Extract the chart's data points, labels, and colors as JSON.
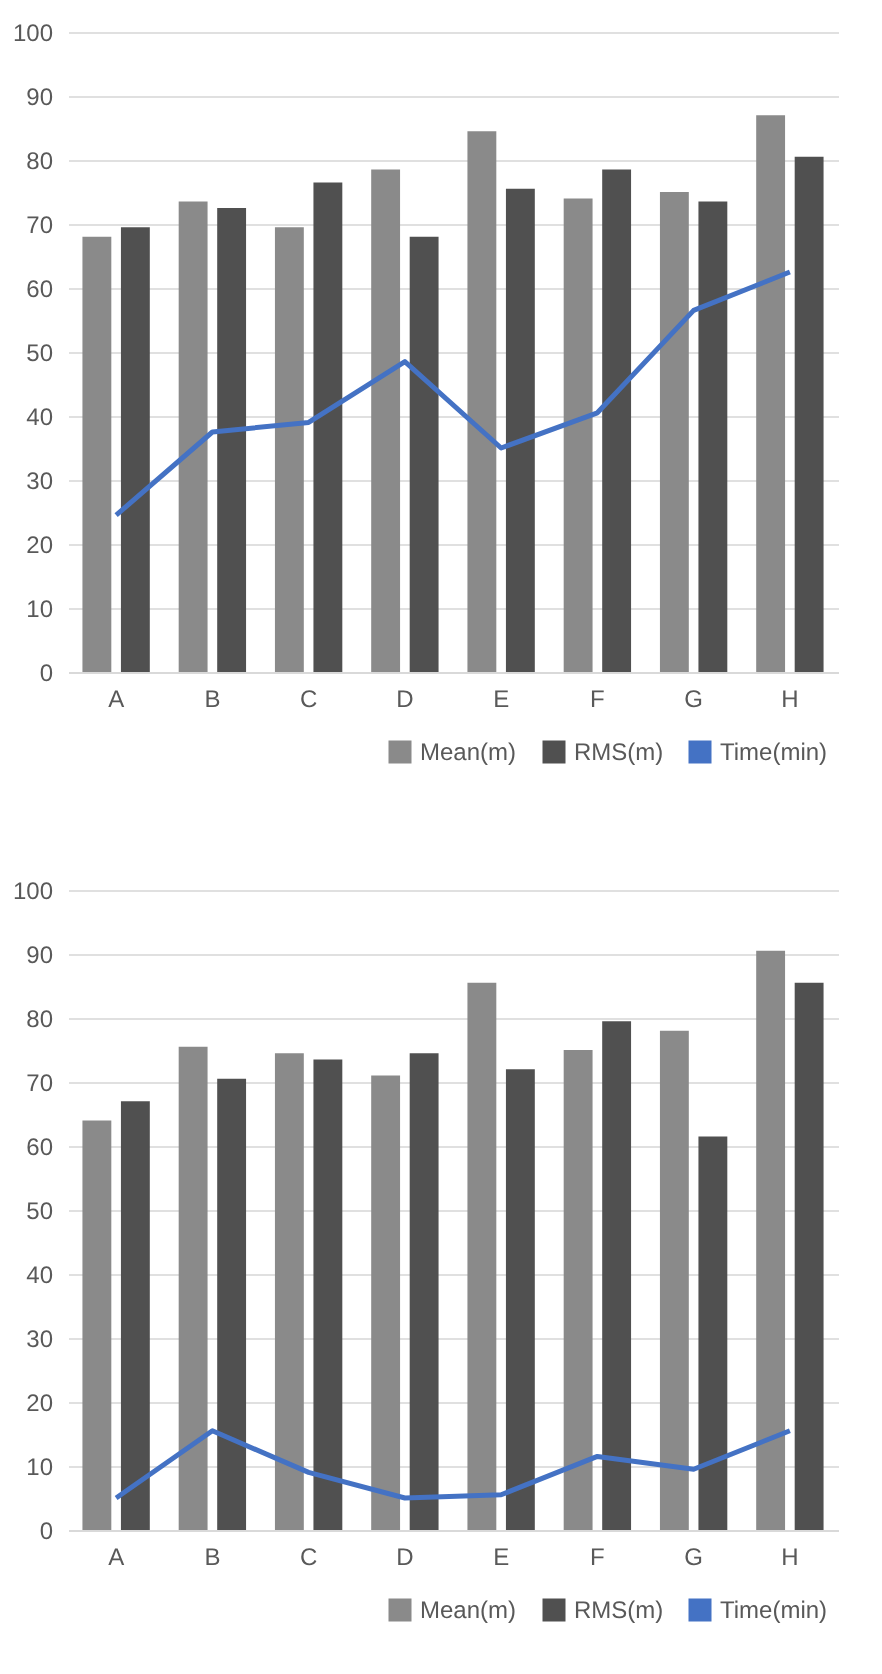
{
  "chart_data": [
    {
      "type": "bar",
      "categories": [
        "A",
        "B",
        "C",
        "D",
        "E",
        "F",
        "G",
        "H"
      ],
      "ylim": [
        0,
        100
      ],
      "yticks": [
        0,
        10,
        20,
        30,
        40,
        50,
        60,
        70,
        80,
        90,
        100
      ],
      "grid": "y",
      "legend": "bottom right",
      "series": [
        {
          "name": "Mean(m)",
          "color": "#8a8a8a",
          "values": [
            68,
            73.5,
            69.5,
            78.5,
            84.5,
            74,
            75,
            87
          ]
        },
        {
          "name": "RMS(m)",
          "color": "#505050",
          "values": [
            69.5,
            72.5,
            76.5,
            68,
            75.5,
            78.5,
            73.5,
            80.5
          ]
        },
        {
          "name": "Time(min)",
          "type": "line",
          "color": "#4472c4",
          "values": [
            24.5,
            37.5,
            39,
            48.5,
            35,
            40.5,
            56.5,
            62.5
          ]
        }
      ]
    },
    {
      "type": "bar",
      "categories": [
        "A",
        "B",
        "C",
        "D",
        "E",
        "F",
        "G",
        "H"
      ],
      "ylim": [
        0,
        100
      ],
      "yticks": [
        0,
        10,
        20,
        30,
        40,
        50,
        60,
        70,
        80,
        90,
        100
      ],
      "grid": "y",
      "legend": "bottom right",
      "series": [
        {
          "name": "Mean(m)",
          "color": "#8a8a8a",
          "values": [
            64,
            75.5,
            74.5,
            71,
            85.5,
            75,
            78,
            90.5
          ]
        },
        {
          "name": "RMS(m)",
          "color": "#505050",
          "values": [
            67,
            70.5,
            73.5,
            74.5,
            72,
            79.5,
            61.5,
            85.5
          ]
        },
        {
          "name": "Time(min)",
          "type": "line",
          "color": "#4472c4",
          "values": [
            5,
            15.5,
            9,
            5,
            5.5,
            11.5,
            9.5,
            15.5
          ]
        }
      ]
    }
  ]
}
